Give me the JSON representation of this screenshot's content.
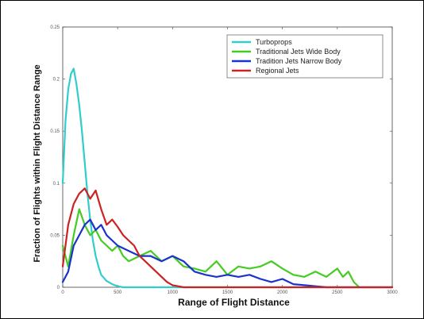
{
  "chart_data": {
    "type": "line",
    "title": "",
    "xlabel": "Range of Flight Distance",
    "ylabel": "Fraction of Flights within Flight Distance Range",
    "xlim": [
      0,
      3000
    ],
    "ylim": [
      0,
      0.25
    ],
    "xticks": [
      0,
      500,
      1000,
      1500,
      2000,
      2500,
      3000
    ],
    "yticks": [
      0,
      0.05,
      0.1,
      0.15,
      0.2,
      0.25
    ],
    "xtick_labels": [
      "0",
      "500",
      "1000",
      "1500",
      "2000",
      "2500",
      "3000"
    ],
    "ytick_labels": [
      "0",
      "0.05",
      "0.1",
      "0.15",
      "0.2",
      "0.25"
    ],
    "grid": false,
    "legend_position": "top-right",
    "series": [
      {
        "name": "Turboprops",
        "color": "#33cccc",
        "x": [
          0,
          25,
          50,
          75,
          100,
          125,
          150,
          175,
          200,
          225,
          250,
          275,
          300,
          325,
          350,
          400,
          450,
          500,
          550,
          600,
          700,
          800,
          3000
        ],
        "y": [
          0.1,
          0.16,
          0.19,
          0.205,
          0.21,
          0.195,
          0.175,
          0.15,
          0.12,
          0.09,
          0.065,
          0.045,
          0.03,
          0.02,
          0.012,
          0.006,
          0.003,
          0.001,
          0.0,
          0.0,
          0.0,
          0.0,
          0.0
        ]
      },
      {
        "name": "Traditional Jets Wide Body",
        "color": "#44cc22",
        "x": [
          0,
          50,
          100,
          150,
          200,
          250,
          300,
          350,
          400,
          450,
          500,
          550,
          600,
          700,
          800,
          900,
          1000,
          1100,
          1200,
          1300,
          1400,
          1500,
          1600,
          1700,
          1800,
          1900,
          2000,
          2100,
          2200,
          2300,
          2400,
          2500,
          2550,
          2600,
          2650,
          2700
        ],
        "y": [
          0.04,
          0.02,
          0.05,
          0.075,
          0.06,
          0.05,
          0.055,
          0.045,
          0.04,
          0.035,
          0.04,
          0.03,
          0.025,
          0.03,
          0.035,
          0.025,
          0.03,
          0.02,
          0.018,
          0.015,
          0.025,
          0.012,
          0.02,
          0.018,
          0.02,
          0.025,
          0.018,
          0.012,
          0.01,
          0.015,
          0.01,
          0.018,
          0.01,
          0.015,
          0.005,
          0.0
        ]
      },
      {
        "name": "Tradition Jets Narrow Body",
        "color": "#1a33cc",
        "x": [
          0,
          50,
          100,
          150,
          200,
          250,
          300,
          350,
          400,
          450,
          500,
          600,
          700,
          800,
          900,
          1000,
          1100,
          1200,
          1300,
          1400,
          1500,
          1600,
          1700,
          1800,
          1900,
          2000,
          2100,
          2200,
          2300,
          2400,
          2500,
          3000
        ],
        "y": [
          0.005,
          0.015,
          0.04,
          0.05,
          0.06,
          0.065,
          0.055,
          0.06,
          0.05,
          0.045,
          0.04,
          0.035,
          0.03,
          0.03,
          0.025,
          0.03,
          0.025,
          0.015,
          0.012,
          0.01,
          0.012,
          0.01,
          0.012,
          0.008,
          0.005,
          0.008,
          0.003,
          0.002,
          0.001,
          0.0,
          0.0,
          0.0
        ]
      },
      {
        "name": "Regional Jets",
        "color": "#cc2222",
        "x": [
          0,
          50,
          100,
          150,
          200,
          250,
          300,
          350,
          400,
          450,
          500,
          550,
          600,
          650,
          700,
          750,
          800,
          850,
          900,
          950,
          1000,
          1100,
          1200,
          1500,
          2000,
          2500,
          3000
        ],
        "y": [
          0.02,
          0.06,
          0.08,
          0.09,
          0.095,
          0.085,
          0.093,
          0.075,
          0.06,
          0.065,
          0.058,
          0.05,
          0.045,
          0.04,
          0.03,
          0.025,
          0.02,
          0.015,
          0.01,
          0.005,
          0.002,
          0.0,
          0.0,
          0.0,
          0.0,
          0.0,
          0.0
        ]
      }
    ]
  }
}
